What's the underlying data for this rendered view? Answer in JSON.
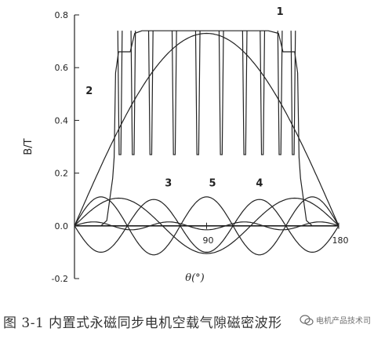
{
  "chart_data": {
    "type": "line",
    "title": "",
    "xlabel": "θ(°)",
    "ylabel": "B/T",
    "xlim": [
      0,
      180
    ],
    "ylim": [
      -0.2,
      0.8
    ],
    "x_tick_labels": [
      "90",
      "180"
    ],
    "x_ticks": [
      90,
      180
    ],
    "y_ticks": [
      -0.2,
      0.0,
      0.2,
      0.4,
      0.6,
      0.8
    ],
    "y_tick_labels": [
      "-0.2",
      "0.0",
      "0.2",
      "0.4",
      "0.6",
      "0.8"
    ],
    "grid": false,
    "series": [
      {
        "name": "1",
        "points": [
          [
            0,
            0
          ],
          [
            18,
            0
          ],
          [
            22,
            0.02
          ],
          [
            26,
            0.18
          ],
          [
            27,
            0.26
          ],
          [
            28,
            0.58
          ],
          [
            30,
            0.66
          ],
          [
            38,
            0.66
          ],
          [
            41,
            0.73
          ],
          [
            46,
            0.74
          ],
          [
            54,
            0.74
          ],
          [
            60,
            0.74
          ],
          [
            66,
            0.74
          ],
          [
            72,
            0.74
          ],
          [
            78,
            0.74
          ],
          [
            84,
            0.74
          ],
          [
            90,
            0.74
          ],
          [
            96,
            0.74
          ],
          [
            102,
            0.74
          ],
          [
            108,
            0.74
          ],
          [
            114,
            0.74
          ],
          [
            120,
            0.74
          ],
          [
            126,
            0.74
          ],
          [
            132,
            0.74
          ],
          [
            139,
            0.73
          ],
          [
            142,
            0.66
          ],
          [
            150,
            0.66
          ],
          [
            152,
            0.58
          ],
          [
            153,
            0.26
          ],
          [
            154,
            0.18
          ],
          [
            158,
            0.02
          ],
          [
            162,
            0
          ],
          [
            180,
            0
          ]
        ]
      },
      {
        "name": "2",
        "peak": 0.73,
        "shape": "sine-half",
        "range": [
          0,
          180
        ]
      },
      {
        "name": "3",
        "harmonic": 3,
        "amplitude": 0.105,
        "phase": 0
      },
      {
        "name": "4",
        "harmonic": 5,
        "amplitude": 0.11,
        "phase": 0
      },
      {
        "name": "5",
        "harmonic": 5,
        "amplitude": 0.1,
        "phase": 180
      },
      {
        "name": "",
        "harmonic": 7,
        "amplitude": 0.015,
        "phase": 0
      }
    ],
    "series_labels": [
      {
        "text": "1",
        "x": 140,
        "y": 0.8
      },
      {
        "text": "2",
        "x": 10,
        "y": 0.5
      },
      {
        "text": "3",
        "x": 64,
        "y": 0.15
      },
      {
        "text": "5",
        "x": 94,
        "y": 0.15
      },
      {
        "text": "4",
        "x": 126,
        "y": 0.15
      }
    ]
  },
  "caption": {
    "text": "图 3-1  内置式永磁同步电机空载气隙磁密波形"
  },
  "watermark": {
    "text": "电机产品技术司"
  }
}
